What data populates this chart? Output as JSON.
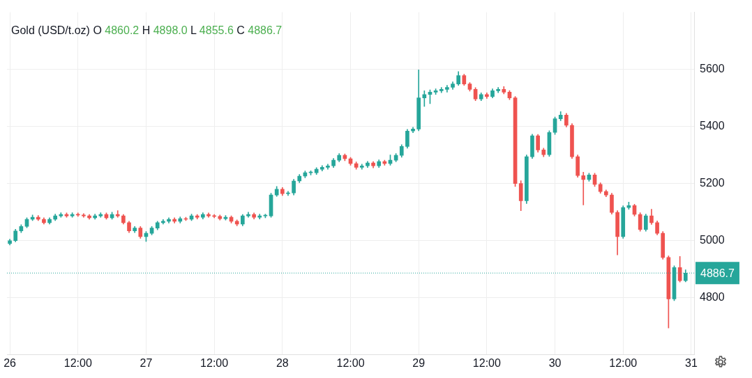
{
  "chart_data": {
    "type": "candlestick",
    "title": "Gold (USD/t.oz) O 4860.2 H 4898.0 L 4855.6 C 4886.7",
    "categories": [
      "26",
      null,
      null,
      null,
      null,
      null,
      null,
      null,
      null,
      null,
      null,
      null,
      "12:00",
      null,
      null,
      null,
      null,
      null,
      null,
      null,
      null,
      null,
      null,
      null,
      "27",
      null,
      null,
      null,
      null,
      null,
      null,
      null,
      null,
      null,
      null,
      null,
      "12:00",
      null,
      null,
      null,
      null,
      null,
      null,
      null,
      null,
      null,
      null,
      null,
      "28",
      null,
      null,
      null,
      null,
      null,
      null,
      null,
      null,
      null,
      null,
      null,
      "12:00",
      null,
      null,
      null,
      null,
      null,
      null,
      null,
      null,
      null,
      null,
      null,
      "29",
      null,
      null,
      null,
      null,
      null,
      null,
      null,
      null,
      null,
      null,
      null,
      "12:00",
      null,
      null,
      null,
      null,
      null,
      null,
      null,
      null,
      null,
      null,
      null,
      "30",
      null,
      null,
      null,
      null,
      null,
      null,
      null,
      null,
      null,
      null,
      null,
      "12:00",
      null,
      null,
      null,
      null,
      null,
      null,
      null,
      null,
      null,
      null,
      null,
      "31"
    ],
    "ohlc": [
      [
        4990,
        5005,
        4985,
        5000
      ],
      [
        5000,
        5040,
        4996,
        5034
      ],
      [
        5034,
        5056,
        5028,
        5050
      ],
      [
        5050,
        5080,
        5045,
        5075
      ],
      [
        5075,
        5090,
        5070,
        5082
      ],
      [
        5082,
        5088,
        5070,
        5075
      ],
      [
        5075,
        5080,
        5058,
        5063
      ],
      [
        5063,
        5080,
        5058,
        5075
      ],
      [
        5075,
        5093,
        5070,
        5087
      ],
      [
        5087,
        5098,
        5082,
        5092
      ],
      [
        5092,
        5097,
        5082,
        5087
      ],
      [
        5087,
        5098,
        5082,
        5092
      ],
      [
        5092,
        5097,
        5085,
        5090
      ],
      [
        5090,
        5095,
        5082,
        5087
      ],
      [
        5087,
        5092,
        5075,
        5080
      ],
      [
        5080,
        5093,
        5075,
        5087
      ],
      [
        5087,
        5098,
        5082,
        5092
      ],
      [
        5092,
        5097,
        5075,
        5080
      ],
      [
        5080,
        5100,
        5075,
        5092
      ],
      [
        5092,
        5105,
        5082,
        5087
      ],
      [
        5087,
        5092,
        5058,
        5063
      ],
      [
        5063,
        5068,
        5028,
        5034
      ],
      [
        5034,
        5050,
        5028,
        5044
      ],
      [
        5044,
        5050,
        5008,
        5014
      ],
      [
        5014,
        5032,
        4997,
        5026
      ],
      [
        5026,
        5050,
        5020,
        5044
      ],
      [
        5044,
        5068,
        5038,
        5063
      ],
      [
        5063,
        5074,
        5058,
        5068
      ],
      [
        5068,
        5080,
        5062,
        5075
      ],
      [
        5075,
        5080,
        5062,
        5068
      ],
      [
        5068,
        5083,
        5062,
        5077
      ],
      [
        5077,
        5082,
        5070,
        5075
      ],
      [
        5075,
        5093,
        5070,
        5087
      ],
      [
        5087,
        5092,
        5076,
        5082
      ],
      [
        5082,
        5098,
        5076,
        5092
      ],
      [
        5092,
        5097,
        5082,
        5087
      ],
      [
        5087,
        5092,
        5080,
        5085
      ],
      [
        5085,
        5090,
        5072,
        5077
      ],
      [
        5077,
        5088,
        5072,
        5082
      ],
      [
        5082,
        5087,
        5062,
        5068
      ],
      [
        5068,
        5073,
        5052,
        5058
      ],
      [
        5058,
        5092,
        5052,
        5087
      ],
      [
        5087,
        5100,
        5082,
        5092
      ],
      [
        5092,
        5097,
        5076,
        5082
      ],
      [
        5082,
        5093,
        5076,
        5087
      ],
      [
        5087,
        5093,
        5080,
        5087
      ],
      [
        5087,
        5166,
        5082,
        5160
      ],
      [
        5160,
        5190,
        5155,
        5180
      ],
      [
        5180,
        5186,
        5158,
        5165
      ],
      [
        5165,
        5173,
        5158,
        5167
      ],
      [
        5167,
        5215,
        5160,
        5209
      ],
      [
        5209,
        5232,
        5203,
        5226
      ],
      [
        5226,
        5244,
        5220,
        5238
      ],
      [
        5238,
        5245,
        5230,
        5238
      ],
      [
        5238,
        5256,
        5232,
        5250
      ],
      [
        5250,
        5263,
        5244,
        5257
      ],
      [
        5257,
        5268,
        5250,
        5262
      ],
      [
        5262,
        5288,
        5256,
        5282
      ],
      [
        5282,
        5305,
        5276,
        5299
      ],
      [
        5299,
        5304,
        5280,
        5287
      ],
      [
        5287,
        5292,
        5264,
        5270
      ],
      [
        5270,
        5276,
        5250,
        5257
      ],
      [
        5257,
        5268,
        5250,
        5262
      ],
      [
        5262,
        5278,
        5256,
        5272
      ],
      [
        5272,
        5277,
        5255,
        5262
      ],
      [
        5262,
        5283,
        5256,
        5277
      ],
      [
        5277,
        5282,
        5264,
        5270
      ],
      [
        5270,
        5300,
        5264,
        5282
      ],
      [
        5282,
        5305,
        5276,
        5299
      ],
      [
        5299,
        5336,
        5292,
        5330
      ],
      [
        5330,
        5390,
        5324,
        5384
      ],
      [
        5384,
        5397,
        5378,
        5391
      ],
      [
        5391,
        5598,
        5385,
        5500
      ],
      [
        5500,
        5525,
        5470,
        5512
      ],
      [
        5512,
        5528,
        5480,
        5520
      ],
      [
        5520,
        5532,
        5512,
        5525
      ],
      [
        5525,
        5537,
        5518,
        5530
      ],
      [
        5530,
        5544,
        5520,
        5537
      ],
      [
        5537,
        5556,
        5530,
        5549
      ],
      [
        5549,
        5592,
        5544,
        5578
      ],
      [
        5578,
        5583,
        5544,
        5549
      ],
      [
        5549,
        5554,
        5524,
        5530
      ],
      [
        5530,
        5536,
        5490,
        5496
      ],
      [
        5496,
        5518,
        5490,
        5512
      ],
      [
        5512,
        5518,
        5498,
        5505
      ],
      [
        5505,
        5532,
        5500,
        5525
      ],
      [
        5525,
        5537,
        5518,
        5530
      ],
      [
        5530,
        5540,
        5514,
        5520
      ],
      [
        5520,
        5526,
        5494,
        5500
      ],
      [
        5500,
        5505,
        5190,
        5200
      ],
      [
        5200,
        5210,
        5105,
        5140
      ],
      [
        5140,
        5300,
        5130,
        5294
      ],
      [
        5294,
        5373,
        5288,
        5367
      ],
      [
        5367,
        5372,
        5310,
        5318
      ],
      [
        5318,
        5324,
        5294,
        5301
      ],
      [
        5301,
        5385,
        5295,
        5379
      ],
      [
        5379,
        5433,
        5372,
        5427
      ],
      [
        5427,
        5452,
        5420,
        5440
      ],
      [
        5440,
        5446,
        5398,
        5404
      ],
      [
        5404,
        5410,
        5288,
        5294
      ],
      [
        5294,
        5300,
        5222,
        5228
      ],
      [
        5228,
        5240,
        5125,
        5214
      ],
      [
        5214,
        5236,
        5208,
        5230
      ],
      [
        5230,
        5236,
        5190,
        5197
      ],
      [
        5197,
        5203,
        5166,
        5172
      ],
      [
        5172,
        5178,
        5154,
        5160
      ],
      [
        5160,
        5166,
        5093,
        5099
      ],
      [
        5099,
        5105,
        4950,
        5014
      ],
      [
        5014,
        5122,
        5008,
        5116
      ],
      [
        5116,
        5135,
        5110,
        5123
      ],
      [
        5123,
        5128,
        5086,
        5092
      ],
      [
        5092,
        5098,
        5033,
        5039
      ],
      [
        5039,
        5093,
        5033,
        5087
      ],
      [
        5087,
        5110,
        5057,
        5063
      ],
      [
        5063,
        5069,
        5020,
        5026
      ],
      [
        5026,
        5032,
        4935,
        4941
      ],
      [
        4941,
        4947,
        4694,
        4796
      ],
      [
        4796,
        4912,
        4790,
        4906
      ],
      [
        4906,
        4945,
        4855,
        4860.2
      ],
      [
        4860.2,
        4898.0,
        4855.6,
        4886.7
      ],
      null
    ],
    "colors": [
      "#26a69a",
      "#26a69a",
      "#26a69a",
      "#26a69a",
      "#26a69a",
      "#ef5350",
      "#ef5350",
      "#26a69a",
      "#26a69a",
      "#26a69a",
      "#ef5350",
      "#26a69a",
      "#ef5350",
      "#ef5350",
      "#ef5350",
      "#26a69a",
      "#26a69a",
      "#ef5350",
      "#26a69a",
      "#ef5350",
      "#ef5350",
      "#ef5350",
      "#26a69a",
      "#ef5350",
      "#26a69a",
      "#26a69a",
      "#26a69a",
      "#26a69a",
      "#26a69a",
      "#ef5350",
      "#26a69a",
      "#ef5350",
      "#26a69a",
      "#ef5350",
      "#26a69a",
      "#ef5350",
      "#ef5350",
      "#ef5350",
      "#26a69a",
      "#ef5350",
      "#ef5350",
      "#26a69a",
      "#26a69a",
      "#ef5350",
      "#26a69a",
      "#26a69a",
      "#26a69a",
      "#26a69a",
      "#ef5350",
      "#26a69a",
      "#26a69a",
      "#26a69a",
      "#26a69a",
      "#26a69a",
      "#26a69a",
      "#26a69a",
      "#26a69a",
      "#26a69a",
      "#26a69a",
      "#ef5350",
      "#ef5350",
      "#ef5350",
      "#26a69a",
      "#26a69a",
      "#ef5350",
      "#26a69a",
      "#ef5350",
      "#26a69a",
      "#26a69a",
      "#26a69a",
      "#26a69a",
      "#26a69a",
      "#26a69a",
      "#26a69a",
      "#26a69a",
      "#26a69a",
      "#26a69a",
      "#26a69a",
      "#26a69a",
      "#26a69a",
      "#ef5350",
      "#ef5350",
      "#ef5350",
      "#26a69a",
      "#ef5350",
      "#26a69a",
      "#26a69a",
      "#ef5350",
      "#ef5350",
      "#ef5350",
      "#ef5350",
      "#26a69a",
      "#26a69a",
      "#ef5350",
      "#ef5350",
      "#26a69a",
      "#26a69a",
      "#26a69a",
      "#ef5350",
      "#ef5350",
      "#ef5350",
      "#ef5350",
      "#26a69a",
      "#ef5350",
      "#ef5350",
      "#ef5350",
      "#ef5350",
      "#ef5350",
      "#26a69a",
      "#26a69a",
      "#ef5350",
      "#ef5350",
      "#26a69a",
      "#ef5350",
      "#ef5350",
      "#ef5350",
      "#ef5350",
      "#26a69a",
      "#ef5350",
      "#26a69a",
      null
    ],
    "ylim": [
      4600,
      5800
    ],
    "yticks": [
      4800,
      5000,
      5200,
      5400,
      5600
    ],
    "ref_lines": [
      {
        "axis": "y",
        "value": 4886.7,
        "label": "4886.7",
        "color": "#26a69a",
        "line_style": "dotted"
      }
    ],
    "grid": true
  }
}
